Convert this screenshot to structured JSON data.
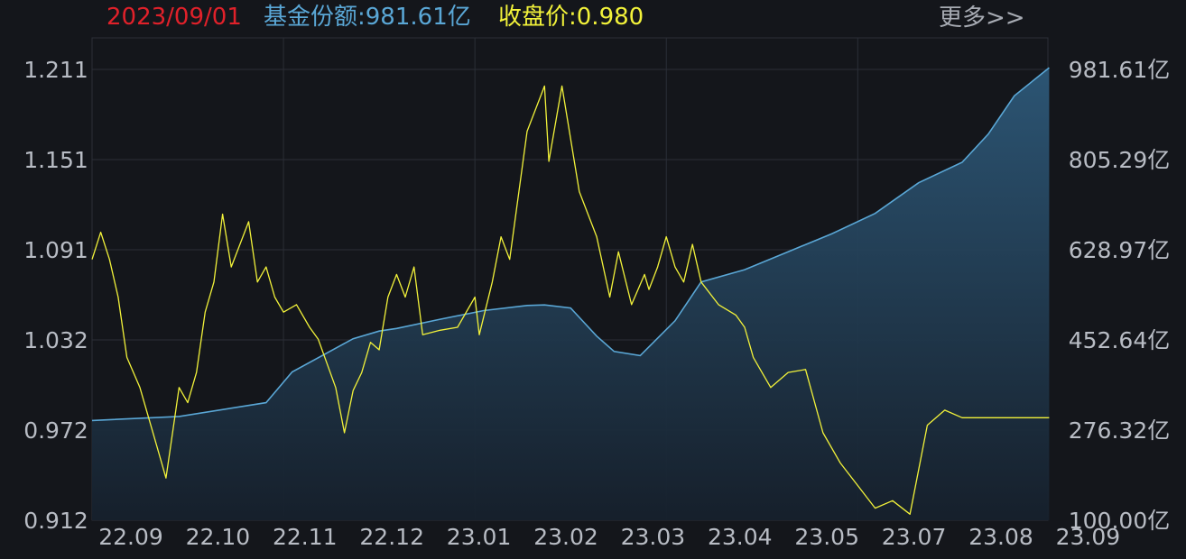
{
  "header": {
    "date": "2023/09/01",
    "share_label": "基金份额:981.61亿",
    "price_label": "收盘价:0.980",
    "more_link": "更多>>"
  },
  "colors": {
    "background": "#14161b",
    "grid": "#2b2f37",
    "date": "#e0212a",
    "share_line": "#5aa7d6",
    "share_fill_top": "#2d5878",
    "share_fill_bottom": "#16202c",
    "price_line": "#f2f23a",
    "axis_text": "#b8bcc4",
    "more_text": "#a7abb3"
  },
  "chart_data": {
    "type": "line",
    "left_axis": {
      "ticks": [
        "1.211",
        "1.151",
        "1.091",
        "1.032",
        "0.972",
        "0.912"
      ],
      "ylim": [
        0.912,
        1.211
      ]
    },
    "right_axis": {
      "ticks": [
        "981.61亿",
        "805.29亿",
        "628.97亿",
        "452.64亿",
        "276.32亿",
        "100.00亿"
      ],
      "ylim": [
        100.0,
        981.61
      ]
    },
    "x_ticks": [
      "22.09",
      "22.10",
      "22.11",
      "22.12",
      "23.01",
      "23.02",
      "23.03",
      "23.04",
      "23.05",
      "23.07",
      "23.08",
      "23.09"
    ],
    "series": [
      {
        "axis": "right",
        "type": "area",
        "x": [
          0.0,
          1.0,
          2.0,
          2.3,
          3.0,
          3.3,
          3.5,
          4.0,
          4.5,
          5.0,
          5.2,
          5.5,
          5.8,
          6.0,
          6.3,
          6.7,
          7.0,
          7.5,
          8.0,
          8.5,
          9.0,
          9.5,
          10.0,
          10.3,
          10.6,
          11.0
        ],
        "y": [
          295,
          303,
          330,
          390,
          455,
          470,
          475,
          493,
          510,
          520,
          521,
          515,
          460,
          430,
          422,
          490,
          566,
          590,
          625,
          660,
          700,
          760,
          800,
          855,
          930,
          985
        ]
      },
      {
        "axis": "left",
        "type": "line",
        "x": [
          0.0,
          0.1,
          0.2,
          0.3,
          0.4,
          0.55,
          0.75,
          0.85,
          0.95,
          1.0,
          1.1,
          1.2,
          1.3,
          1.4,
          1.5,
          1.6,
          1.8,
          1.9,
          2.0,
          2.1,
          2.2,
          2.35,
          2.5,
          2.6,
          2.8,
          2.9,
          3.0,
          3.1,
          3.2,
          3.3,
          3.4,
          3.5,
          3.6,
          3.7,
          3.8,
          4.0,
          4.2,
          4.4,
          4.45,
          4.6,
          4.7,
          4.8,
          5.0,
          5.2,
          5.25,
          5.4,
          5.6,
          5.8,
          5.95,
          6.05,
          6.2,
          6.35,
          6.4,
          6.5,
          6.6,
          6.7,
          6.8,
          6.9,
          7.0,
          7.2,
          7.4,
          7.5,
          7.6,
          7.8,
          8.0,
          8.2,
          8.4,
          8.6,
          8.8,
          9.0,
          9.2,
          9.4,
          9.6,
          9.8,
          10.0,
          10.2,
          10.4,
          10.55,
          10.6,
          10.7,
          10.8,
          10.9,
          11.0
        ],
        "y": [
          1.085,
          1.103,
          1.085,
          1.06,
          1.02,
          1.0,
          0.96,
          0.94,
          0.98,
          1.0,
          0.99,
          1.01,
          1.05,
          1.07,
          1.115,
          1.08,
          1.11,
          1.07,
          1.08,
          1.06,
          1.05,
          1.055,
          1.04,
          1.032,
          1.0,
          0.97,
          0.998,
          1.01,
          1.03,
          1.025,
          1.06,
          1.075,
          1.06,
          1.08,
          1.035,
          1.038,
          1.04,
          1.06,
          1.035,
          1.07,
          1.1,
          1.085,
          1.17,
          1.2,
          1.15,
          1.2,
          1.13,
          1.1,
          1.06,
          1.09,
          1.055,
          1.075,
          1.065,
          1.08,
          1.1,
          1.08,
          1.07,
          1.095,
          1.07,
          1.055,
          1.048,
          1.04,
          1.02,
          1.0,
          1.01,
          1.012,
          0.97,
          0.95,
          0.935,
          0.92,
          0.925,
          0.916,
          0.975,
          0.985,
          0.98,
          0.98,
          0.98,
          0.98,
          0.98,
          0.98,
          0.98,
          0.98,
          0.98
        ]
      }
    ]
  }
}
